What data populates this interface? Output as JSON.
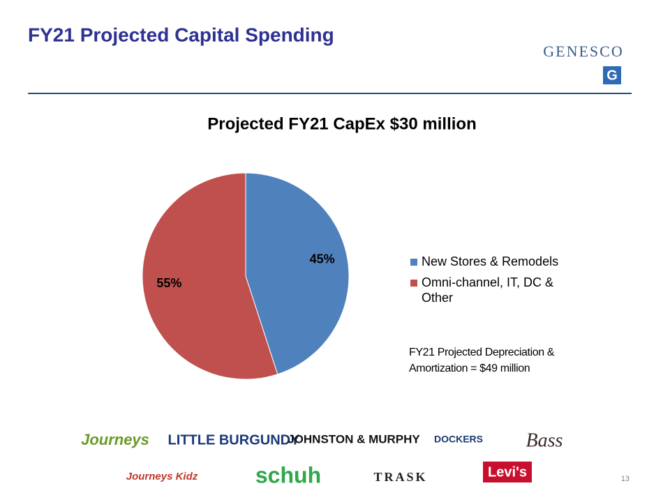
{
  "slide": {
    "title": "FY21 Projected Capital Spending",
    "company": "GENESCO",
    "page_number": "13"
  },
  "chart_data": {
    "type": "pie",
    "title": "Projected FY21 CapEx $30 million",
    "categories": [
      "New Stores & Remodels",
      "Omni-channel, IT, DC & Other"
    ],
    "values": [
      45,
      55
    ],
    "value_labels": [
      "45%",
      "55%"
    ],
    "colors": [
      "#4f81bd",
      "#c0504d"
    ],
    "annotation": "FY21 Projected Depreciation & Amortization = $49 million"
  },
  "logos": [
    "Journeys",
    "LITTLE BURGUNDY",
    "JOHNSTON & MURPHY",
    "DOCKERS",
    "Bass",
    "Journeys Kidz",
    "schuh",
    "TRASK",
    "Levi's"
  ]
}
